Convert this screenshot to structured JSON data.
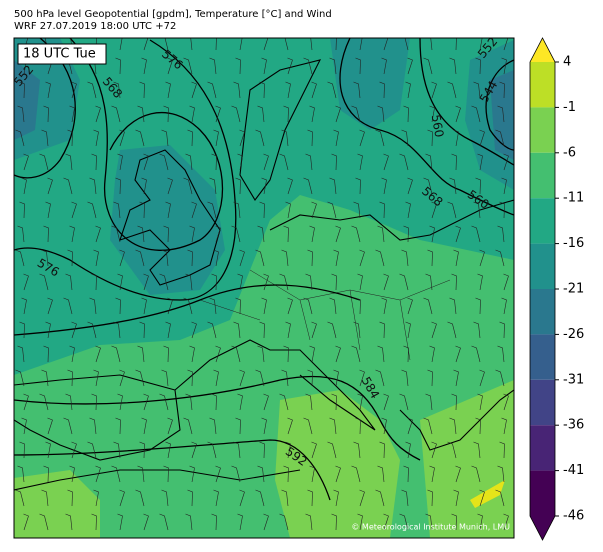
{
  "header": {
    "title": "500 hPa level Geopotential [gpdm], Temperature [°C] and Wind",
    "subtitle": "WRF 27.07.2019 18:00 UTC +72"
  },
  "map": {
    "time_label": "18 UTC Tue",
    "contour_labels": [
      "576",
      "568",
      "552",
      "552",
      "544",
      "560",
      "568",
      "560",
      "576",
      "584",
      "592"
    ],
    "credit": "© Meteorological Institute Munich, LMU"
  },
  "colorbar": {
    "ticks": [
      4,
      -1,
      -6,
      -11,
      -16,
      -21,
      -26,
      -31,
      -36,
      -41,
      -46
    ],
    "colors": [
      "#bddf26",
      "#7ad151",
      "#44bf70",
      "#22a884",
      "#21918c",
      "#2a788e",
      "#355f8d",
      "#414487",
      "#482475",
      "#440154"
    ],
    "extend_colors": [
      "#fde725",
      "#440154"
    ]
  }
}
